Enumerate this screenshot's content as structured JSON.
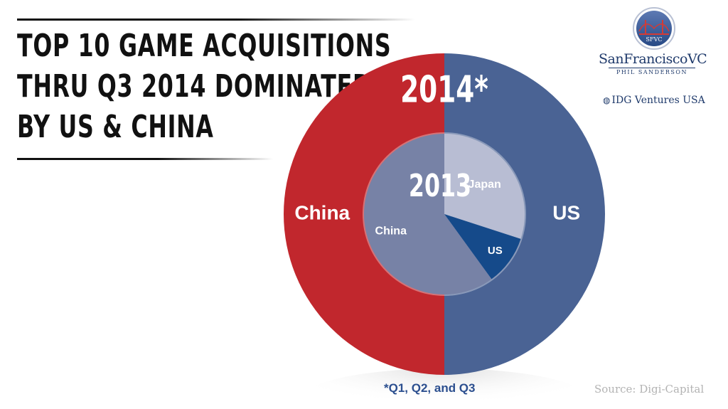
{
  "title": {
    "lines": [
      "TOP 10 GAME ACQUISITIONS",
      "THRU Q3 2014 DOMINATED",
      "BY US & CHINA"
    ]
  },
  "logos": {
    "sfvc_seal_text": "SFVC",
    "sfvc_name": "SanFranciscoVC",
    "sfvc_sub": "PHIL SANDERSON",
    "idg": "IDG Ventures USA"
  },
  "footnote": "*Q1, Q2, and Q3",
  "source": "Source: Digi-Capital",
  "colors": {
    "us_2014": "#4a6394",
    "china_2014": "#c1272d",
    "china_2013": "#7782a6",
    "japan_2013": "#b8bdd3",
    "us_2013": "#154a8a"
  },
  "chart_data": [
    {
      "type": "pie",
      "title": "2014*",
      "ring": "outer",
      "slices": [
        {
          "label": "US",
          "value": 50
        },
        {
          "label": "China",
          "value": 50
        }
      ]
    },
    {
      "type": "pie",
      "title": "2013",
      "ring": "inner",
      "slices": [
        {
          "label": "Japan",
          "value": 30
        },
        {
          "label": "US",
          "value": 10
        },
        {
          "label": "China",
          "value": 60
        }
      ]
    }
  ]
}
